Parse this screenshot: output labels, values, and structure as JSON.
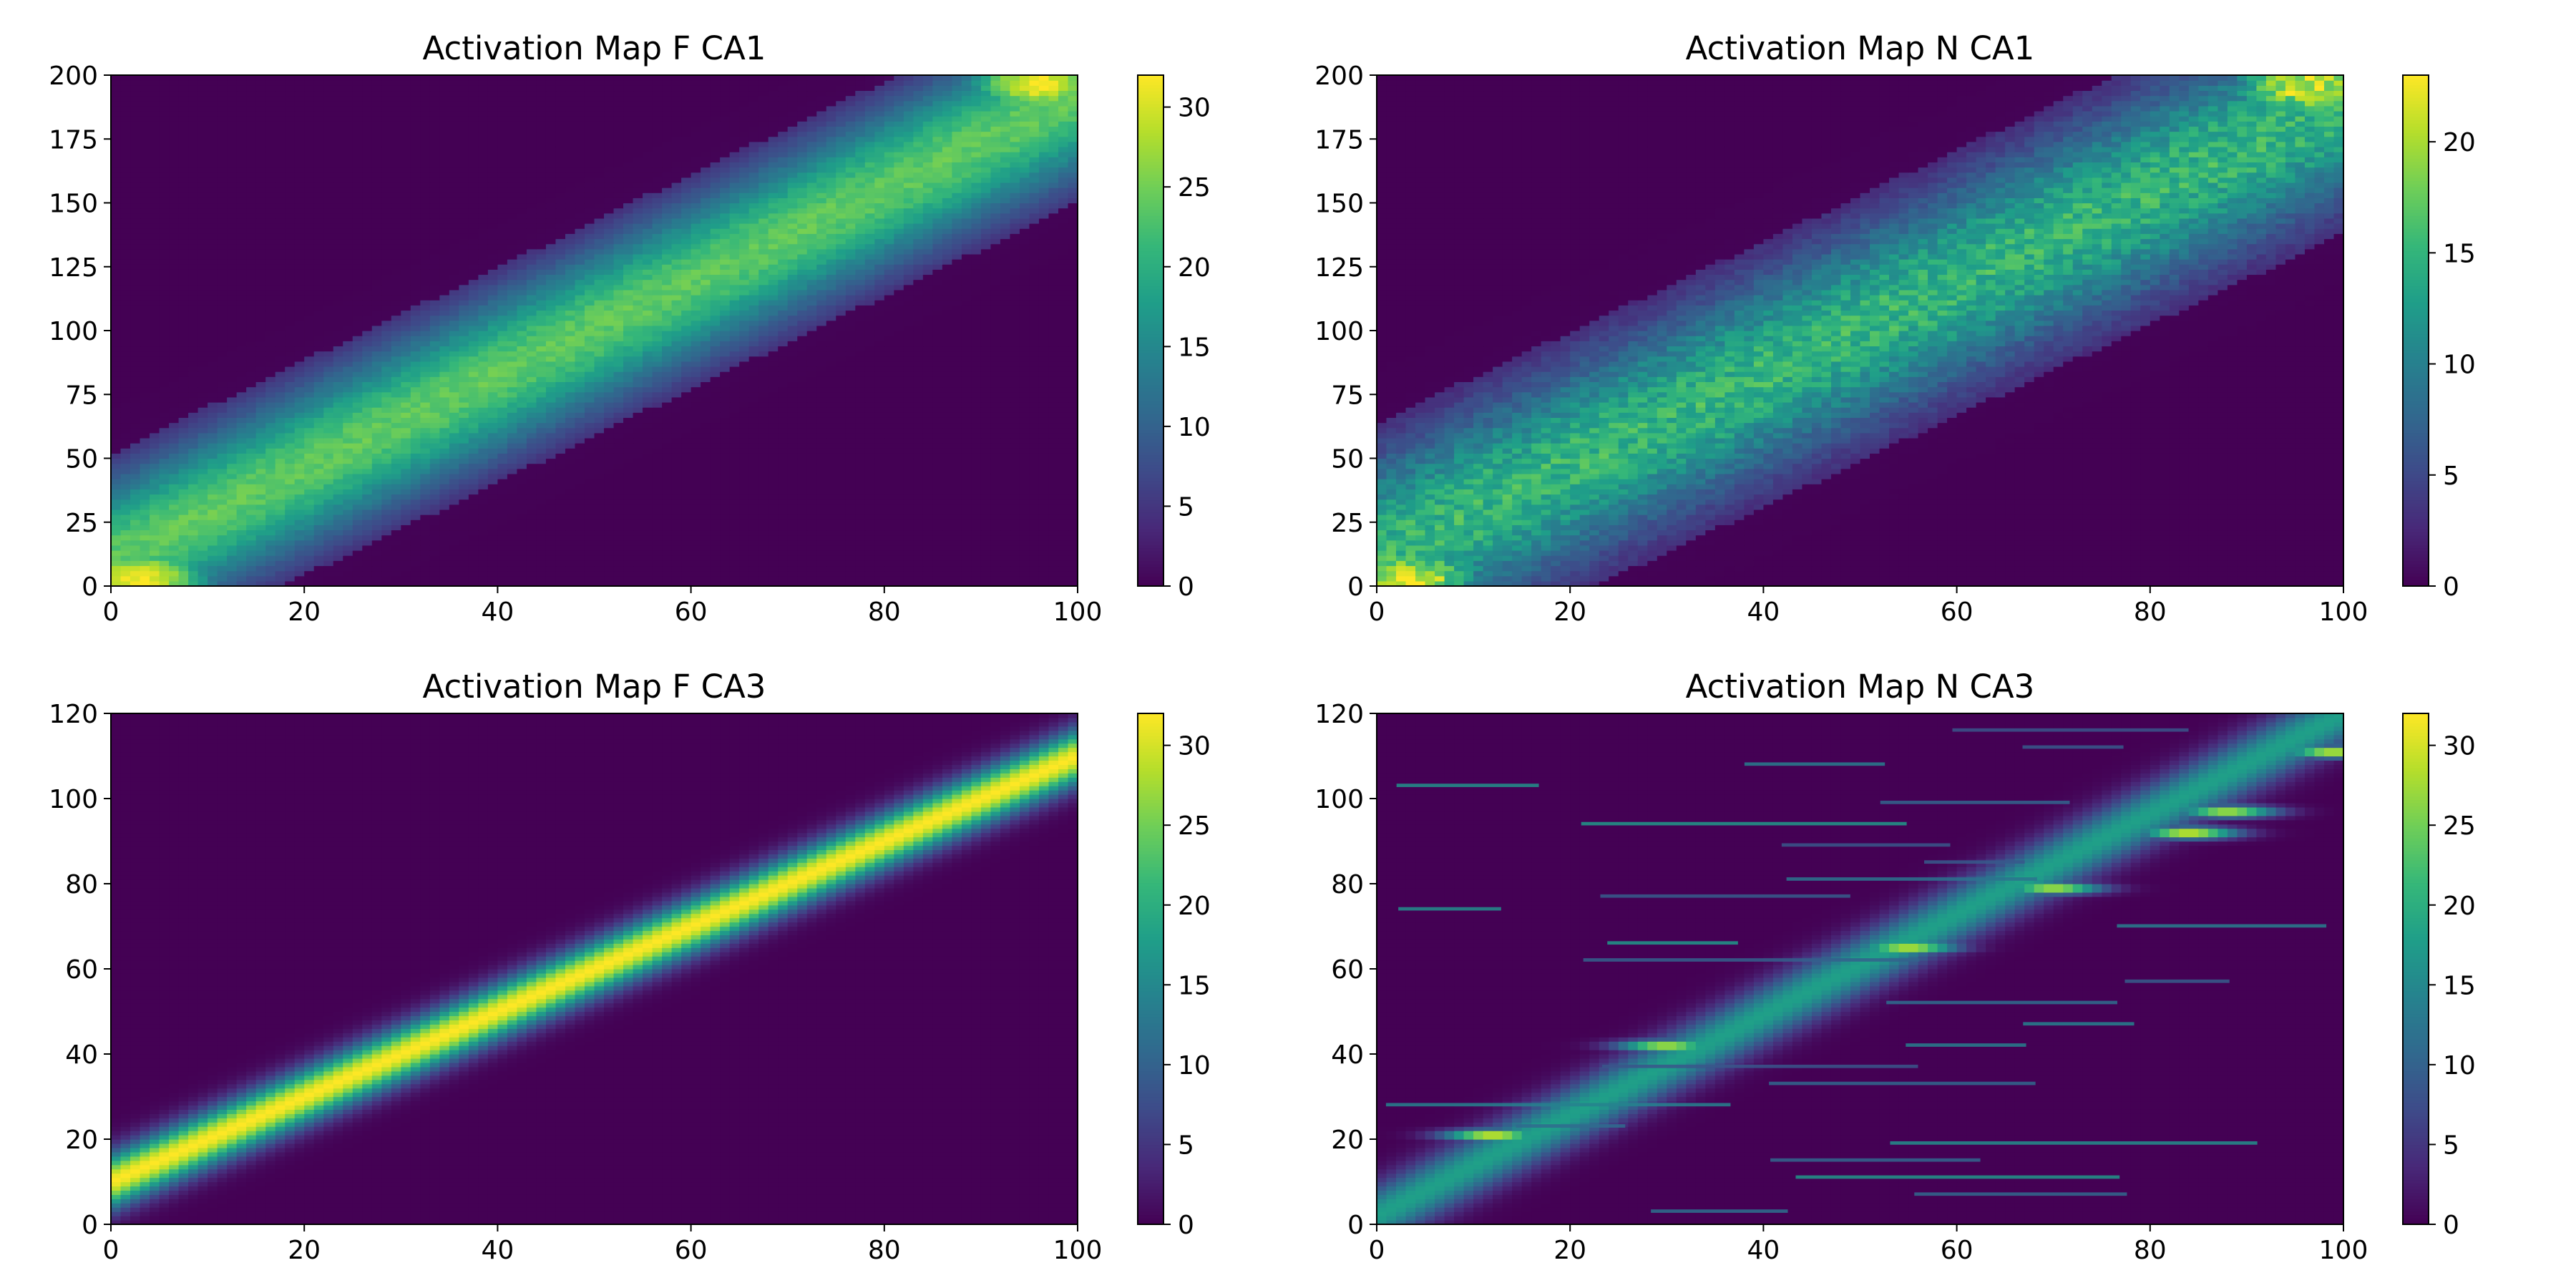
{
  "figure": {
    "colormap": "viridis",
    "colors": {
      "frame": "#000000",
      "background": "#ffffff",
      "viridis_stops": [
        "#440154",
        "#482878",
        "#3e4a89",
        "#31688e",
        "#26828e",
        "#1f9e89",
        "#35b779",
        "#6ece58",
        "#b5de2b",
        "#fde725"
      ]
    }
  },
  "chart_data": [
    {
      "id": "f-ca1",
      "type": "heatmap",
      "title": "Activation Map F CA1",
      "xlabel": "",
      "ylabel": "",
      "xlim": [
        0,
        100
      ],
      "ylim": [
        0,
        200
      ],
      "xticks": [
        "0",
        "20",
        "40",
        "60",
        "80",
        "100"
      ],
      "yticks": [
        "0",
        "25",
        "50",
        "75",
        "100",
        "125",
        "150",
        "175",
        "200"
      ],
      "colorbar": {
        "range": [
          0,
          32
        ],
        "ticks": [
          "0",
          "5",
          "10",
          "15",
          "20",
          "25",
          "30"
        ]
      },
      "pattern": {
        "kind": "diagonal-band",
        "center_line": [
          [
            0,
            10
          ],
          [
            100,
            192
          ]
        ],
        "band_halfwidth": 42,
        "peak_value": 24,
        "corner_peaks": [
          {
            "x": 3,
            "y": 3,
            "value": 32
          },
          {
            "x": 96,
            "y": 197,
            "value": 32
          }
        ],
        "noise": 0.12
      }
    },
    {
      "id": "n-ca1",
      "type": "heatmap",
      "title": "Activation Map N CA1",
      "xlabel": "",
      "ylabel": "",
      "xlim": [
        0,
        100
      ],
      "ylim": [
        0,
        200
      ],
      "xticks": [
        "0",
        "20",
        "40",
        "60",
        "80",
        "100"
      ],
      "yticks": [
        "0",
        "25",
        "50",
        "75",
        "100",
        "125",
        "150",
        "175",
        "200"
      ],
      "colorbar": {
        "range": [
          0,
          23
        ],
        "ticks": [
          "0",
          "5",
          "10",
          "15",
          "20"
        ]
      },
      "pattern": {
        "kind": "diagonal-band",
        "center_line": [
          [
            0,
            12
          ],
          [
            100,
            190
          ]
        ],
        "band_halfwidth": 52,
        "peak_value": 15,
        "corner_peaks": [
          {
            "x": 3,
            "y": 3,
            "value": 23
          },
          {
            "x": 96,
            "y": 196,
            "value": 22
          }
        ],
        "noise": 0.35
      }
    },
    {
      "id": "f-ca3",
      "type": "heatmap",
      "title": "Activation Map F CA3",
      "xlabel": "",
      "ylabel": "",
      "xlim": [
        0,
        100
      ],
      "ylim": [
        0,
        120
      ],
      "xticks": [
        "0",
        "20",
        "40",
        "60",
        "80",
        "100"
      ],
      "yticks": [
        "0",
        "20",
        "40",
        "60",
        "80",
        "100",
        "120"
      ],
      "colorbar": {
        "range": [
          0,
          32
        ],
        "ticks": [
          "0",
          "5",
          "10",
          "15",
          "20",
          "25",
          "30"
        ]
      },
      "pattern": {
        "kind": "gaussian-ridge",
        "center_line": [
          [
            0,
            10
          ],
          [
            100,
            110
          ]
        ],
        "sigma": 4.5,
        "peak_value": 32
      }
    },
    {
      "id": "n-ca3",
      "type": "heatmap",
      "title": "Activation Map N CA3",
      "xlabel": "",
      "ylabel": "",
      "xlim": [
        0,
        100
      ],
      "ylim": [
        0,
        120
      ],
      "xticks": [
        "0",
        "20",
        "40",
        "60",
        "80",
        "100"
      ],
      "yticks": [
        "0",
        "20",
        "40",
        "60",
        "80",
        "100",
        "120"
      ],
      "colorbar": {
        "range": [
          0,
          32
        ],
        "ticks": [
          "0",
          "5",
          "10",
          "15",
          "20",
          "25",
          "30"
        ]
      },
      "pattern": {
        "kind": "gaussian-ridge-with-streaks",
        "center_line": [
          [
            0,
            2
          ],
          [
            100,
            120
          ]
        ],
        "sigma": 5,
        "peak_value": 18,
        "hot_spots": [
          {
            "x": 12,
            "y": 21,
            "value": 32
          },
          {
            "x": 30,
            "y": 42,
            "value": 30
          },
          {
            "x": 55,
            "y": 65,
            "value": 31
          },
          {
            "x": 70,
            "y": 79,
            "value": 30
          },
          {
            "x": 84,
            "y": 92,
            "value": 32
          },
          {
            "x": 88,
            "y": 97,
            "value": 30
          },
          {
            "x": 99,
            "y": 111,
            "value": 31
          }
        ],
        "streak_rows": [
          3,
          7,
          11,
          15,
          19,
          23,
          28,
          33,
          37,
          42,
          47,
          52,
          57,
          62,
          66,
          70,
          74,
          77,
          81,
          85,
          89,
          94,
          99,
          103,
          108,
          112,
          116
        ]
      }
    }
  ]
}
